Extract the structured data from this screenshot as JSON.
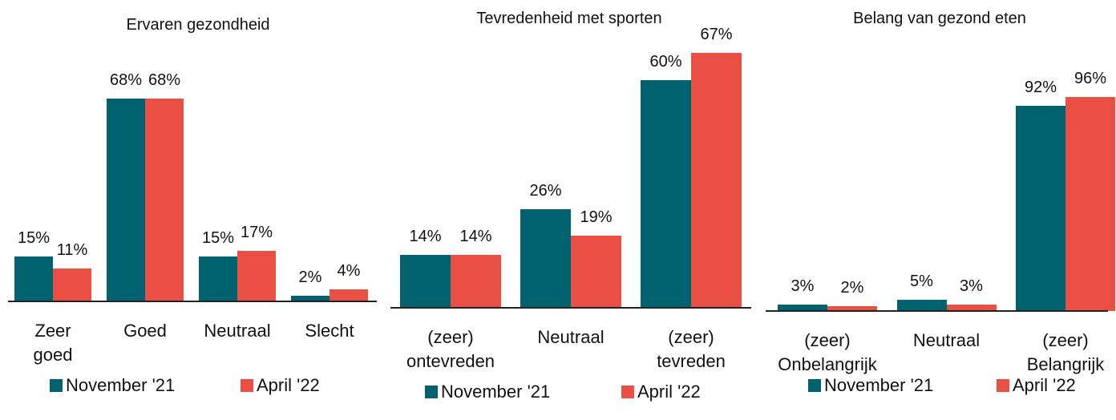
{
  "chart_data": [
    {
      "type": "bar",
      "title": "Ervaren gezondheid",
      "categories": [
        "Zeer goed",
        "Goed",
        "Neutraal",
        "Slecht"
      ],
      "series": [
        {
          "name": "November '21",
          "color": "#00626f",
          "values": [
            15,
            68,
            15,
            2
          ],
          "value_labels": [
            "15%",
            "68%",
            "15%",
            "2%"
          ]
        },
        {
          "name": "April '22",
          "color": "#e94f43",
          "values": [
            11,
            68,
            17,
            4
          ],
          "value_labels": [
            "11%",
            "68%",
            "17%",
            "4%"
          ]
        }
      ]
    },
    {
      "type": "bar",
      "title": "Tevredenheid met sporten",
      "categories": [
        "(zeer) ontevreden",
        "Neutraal",
        "(zeer) tevreden"
      ],
      "series": [
        {
          "name": "November '21",
          "color": "#00626f",
          "values": [
            14,
            26,
            60
          ],
          "value_labels": [
            "14%",
            "26%",
            "60%"
          ]
        },
        {
          "name": "April '22",
          "color": "#e94f43",
          "values": [
            14,
            19,
            67
          ],
          "value_labels": [
            "14%",
            "19%",
            "67%"
          ]
        }
      ]
    },
    {
      "type": "bar",
      "title": "Belang van gezond eten",
      "categories": [
        "(zeer) Onbelangrijk",
        "Neutraal",
        "(zeer) Belangrijk"
      ],
      "series": [
        {
          "name": "November '21",
          "color": "#00626f",
          "values": [
            3,
            5,
            92
          ],
          "value_labels": [
            "3%",
            "5%",
            "92%"
          ]
        },
        {
          "name": "April '22",
          "color": "#e94f43",
          "values": [
            2,
            3,
            96
          ],
          "value_labels": [
            "2%",
            "3%",
            "96%"
          ]
        }
      ]
    }
  ]
}
